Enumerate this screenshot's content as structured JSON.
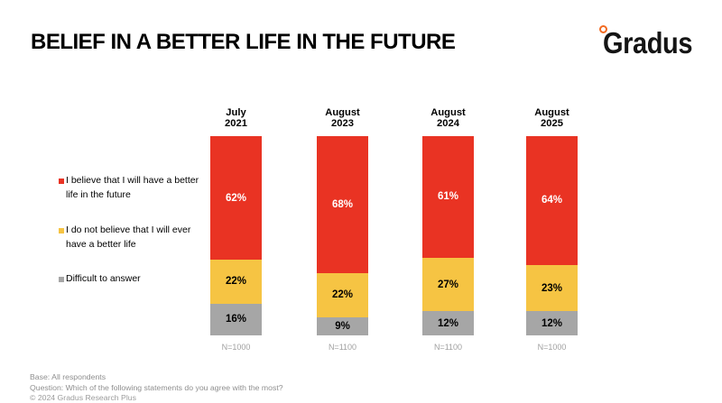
{
  "title": "BELIEF IN A BETTER LIFE IN THE FUTURE",
  "logo": {
    "text": "Gradus"
  },
  "legend": [
    {
      "label": "I believe that I will have a better\nlife in the future",
      "color": "#e93323"
    },
    {
      "label": "I do not believe that I will ever\nhave a better life",
      "color": "#f6c443"
    },
    {
      "label": "Difficult to answer",
      "color": "#a6a6a6"
    }
  ],
  "chart_data": {
    "type": "bar",
    "stacked": true,
    "categories": [
      "July\n2021",
      "August\n2023",
      "August\n2024",
      "August\n2025"
    ],
    "series": [
      {
        "name": "I believe that I will have a better life in the future",
        "color": "#e93323",
        "values": [
          62,
          68,
          61,
          64
        ]
      },
      {
        "name": "I do not believe that I will ever have a better life",
        "color": "#f6c443",
        "values": [
          22,
          22,
          27,
          23
        ]
      },
      {
        "name": "Difficult to answer",
        "color": "#a6a6a6",
        "values": [
          16,
          9,
          12,
          12
        ]
      }
    ],
    "value_suffix": "%",
    "bases": [
      "N=1000",
      "N=1100",
      "N=1100",
      "N=1000"
    ]
  },
  "footer": {
    "base": "Base: All respondents",
    "question": "Question: Which of the following statements do you agree with the most?",
    "copyright": "© 2024 Gradus Research Plus"
  }
}
